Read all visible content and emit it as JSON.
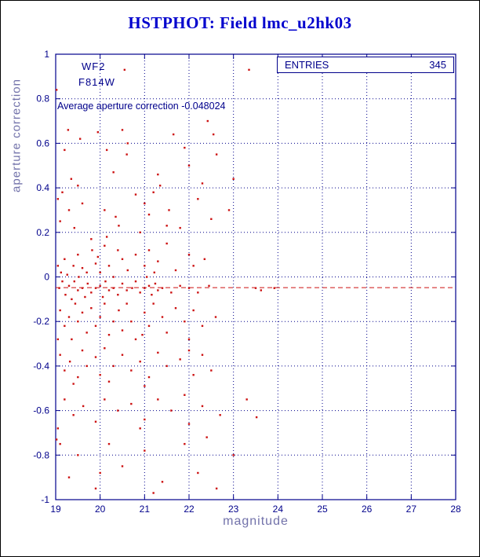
{
  "title": "HSTPHOT: Field lmc_u2hk03",
  "stats": {
    "entries_label": "ENTRIES",
    "entries_value": "345"
  },
  "annotations": {
    "camera": "WF2",
    "filter": "F814W",
    "average_text": "Average aperture correction -0.048024"
  },
  "colors": {
    "axis": "#00008b",
    "title": "#0000cd",
    "points": "#cc1111",
    "axis_label": "#7272aa"
  },
  "chart_data": {
    "type": "scatter",
    "title": "HSTPHOT: Field lmc_u2hk03",
    "xlabel": "magnitude",
    "ylabel": "aperture correction",
    "xlim": [
      19,
      28
    ],
    "ylim": [
      -1,
      1
    ],
    "xticks": [
      19,
      20,
      21,
      22,
      23,
      24,
      25,
      26,
      27,
      28
    ],
    "xtick_labels": [
      "19",
      "20",
      "21",
      "22",
      "23",
      "24",
      "25",
      "26",
      "27",
      "28"
    ],
    "yticks": [
      1,
      0.8,
      0.6,
      0.4,
      0.2,
      0,
      -0.2,
      -0.4,
      -0.6,
      -0.8,
      -1
    ],
    "ytick_labels": [
      "1",
      "0.8",
      "0.6",
      "0.4",
      "0.2",
      "0",
      "-0.2",
      "-0.4",
      "-0.6",
      "-0.8",
      "-1"
    ],
    "grid": true,
    "legend": false,
    "entries": 345,
    "average_aperture_correction": -0.048024,
    "reference_line_y": -0.048024,
    "points": [
      [
        20.55,
        0.93
      ],
      [
        23.35,
        0.93
      ],
      [
        19.02,
        0.84
      ],
      [
        19.28,
        0.66
      ],
      [
        19.95,
        0.65
      ],
      [
        20.5,
        0.66
      ],
      [
        20.62,
        0.6
      ],
      [
        21.65,
        0.64
      ],
      [
        22.42,
        0.7
      ],
      [
        22.55,
        0.64
      ],
      [
        19.55,
        0.62
      ],
      [
        20.15,
        0.57
      ],
      [
        20.6,
        0.55
      ],
      [
        22.62,
        0.55
      ],
      [
        19.2,
        0.57
      ],
      [
        21.9,
        0.58
      ],
      [
        19.35,
        0.44
      ],
      [
        19.5,
        0.41
      ],
      [
        20.3,
        0.47
      ],
      [
        21.3,
        0.46
      ],
      [
        21.35,
        0.41
      ],
      [
        22.3,
        0.42
      ],
      [
        19.15,
        0.38
      ],
      [
        20.8,
        0.37
      ],
      [
        21.2,
        0.38
      ],
      [
        22.0,
        0.5
      ],
      [
        19.05,
        0.35
      ],
      [
        23.0,
        0.44
      ],
      [
        19.1,
        0.25
      ],
      [
        19.3,
        0.3
      ],
      [
        19.42,
        0.22
      ],
      [
        19.6,
        0.33
      ],
      [
        20.1,
        0.3
      ],
      [
        20.35,
        0.27
      ],
      [
        20.42,
        0.23
      ],
      [
        21.0,
        0.33
      ],
      [
        21.1,
        0.28
      ],
      [
        21.5,
        0.23
      ],
      [
        21.55,
        0.3
      ],
      [
        22.2,
        0.35
      ],
      [
        22.5,
        0.26
      ],
      [
        20.15,
        0.18
      ],
      [
        20.9,
        0.2
      ],
      [
        19.8,
        0.17
      ],
      [
        21.8,
        0.22
      ],
      [
        22.9,
        0.3
      ],
      [
        19.05,
        0.05
      ],
      [
        19.12,
        0.02
      ],
      [
        19.2,
        0.08
      ],
      [
        19.26,
        0.01
      ],
      [
        19.4,
        0.05
      ],
      [
        19.5,
        0.1
      ],
      [
        19.52,
        0.0
      ],
      [
        19.6,
        0.04
      ],
      [
        19.7,
        0.02
      ],
      [
        19.82,
        0.12
      ],
      [
        19.9,
        0.06
      ],
      [
        20.0,
        0.02
      ],
      [
        20.1,
        0.14
      ],
      [
        20.2,
        0.05
      ],
      [
        20.3,
        0.0
      ],
      [
        20.5,
        0.08
      ],
      [
        20.62,
        0.03
      ],
      [
        20.8,
        0.1
      ],
      [
        21.0,
        0.05
      ],
      [
        21.05,
        0.0
      ],
      [
        21.1,
        0.12
      ],
      [
        21.22,
        0.02
      ],
      [
        21.3,
        0.07
      ],
      [
        21.5,
        0.15
      ],
      [
        22.0,
        0.1
      ],
      [
        22.1,
        0.05
      ],
      [
        20.4,
        0.12
      ],
      [
        19.95,
        0.09
      ],
      [
        21.7,
        0.03
      ],
      [
        22.35,
        0.08
      ],
      [
        19.08,
        -0.05
      ],
      [
        19.15,
        -0.02
      ],
      [
        19.22,
        -0.08
      ],
      [
        19.3,
        -0.04
      ],
      [
        19.36,
        -0.1
      ],
      [
        19.42,
        -0.02
      ],
      [
        19.5,
        -0.06
      ],
      [
        19.6,
        -0.05
      ],
      [
        19.66,
        -0.09
      ],
      [
        19.72,
        -0.03
      ],
      [
        19.8,
        -0.07
      ],
      [
        19.9,
        -0.05
      ],
      [
        20.0,
        -0.04
      ],
      [
        20.06,
        -0.09
      ],
      [
        20.12,
        -0.02
      ],
      [
        20.2,
        -0.06
      ],
      [
        20.3,
        -0.05
      ],
      [
        20.4,
        -0.08
      ],
      [
        20.5,
        -0.03
      ],
      [
        20.6,
        -0.06
      ],
      [
        20.72,
        -0.05
      ],
      [
        20.8,
        -0.02
      ],
      [
        20.9,
        -0.07
      ],
      [
        21.0,
        -0.05
      ],
      [
        21.1,
        -0.04
      ],
      [
        21.16,
        -0.08
      ],
      [
        21.24,
        -0.03
      ],
      [
        21.3,
        -0.06
      ],
      [
        21.4,
        -0.05
      ],
      [
        21.6,
        -0.07
      ],
      [
        21.8,
        -0.04
      ],
      [
        22.0,
        -0.05
      ],
      [
        22.2,
        -0.07
      ],
      [
        22.45,
        -0.04
      ],
      [
        23.5,
        -0.05
      ],
      [
        23.62,
        -0.06
      ],
      [
        23.92,
        -0.05
      ],
      [
        19.1,
        -0.15
      ],
      [
        19.2,
        -0.22
      ],
      [
        19.3,
        -0.18
      ],
      [
        19.36,
        -0.28
      ],
      [
        19.44,
        -0.12
      ],
      [
        19.5,
        -0.2
      ],
      [
        19.6,
        -0.16
      ],
      [
        19.7,
        -0.25
      ],
      [
        19.8,
        -0.14
      ],
      [
        19.9,
        -0.22
      ],
      [
        20.0,
        -0.18
      ],
      [
        20.1,
        -0.12
      ],
      [
        20.2,
        -0.26
      ],
      [
        20.3,
        -0.2
      ],
      [
        20.42,
        -0.15
      ],
      [
        20.5,
        -0.24
      ],
      [
        20.6,
        -0.12
      ],
      [
        20.7,
        -0.2
      ],
      [
        20.8,
        -0.28
      ],
      [
        21.0,
        -0.16
      ],
      [
        21.1,
        -0.22
      ],
      [
        21.2,
        -0.12
      ],
      [
        21.4,
        -0.18
      ],
      [
        21.5,
        -0.25
      ],
      [
        21.7,
        -0.14
      ],
      [
        21.9,
        -0.2
      ],
      [
        22.0,
        -0.28
      ],
      [
        22.1,
        -0.15
      ],
      [
        22.3,
        -0.22
      ],
      [
        19.05,
        -0.28
      ],
      [
        20.95,
        -0.26
      ],
      [
        22.6,
        -0.18
      ],
      [
        19.1,
        -0.35
      ],
      [
        19.2,
        -0.42
      ],
      [
        19.32,
        -0.38
      ],
      [
        19.5,
        -0.45
      ],
      [
        19.6,
        -0.33
      ],
      [
        19.7,
        -0.4
      ],
      [
        19.9,
        -0.36
      ],
      [
        20.0,
        -0.44
      ],
      [
        20.1,
        -0.32
      ],
      [
        20.3,
        -0.4
      ],
      [
        20.5,
        -0.35
      ],
      [
        20.7,
        -0.42
      ],
      [
        20.9,
        -0.38
      ],
      [
        21.1,
        -0.45
      ],
      [
        21.3,
        -0.34
      ],
      [
        21.5,
        -0.4
      ],
      [
        21.8,
        -0.37
      ],
      [
        22.1,
        -0.44
      ],
      [
        22.3,
        -0.35
      ],
      [
        22.5,
        -0.42
      ],
      [
        19.4,
        -0.48
      ],
      [
        20.2,
        -0.47
      ],
      [
        21.0,
        -0.49
      ],
      [
        22.0,
        -0.33
      ],
      [
        19.2,
        -0.55
      ],
      [
        19.4,
        -0.62
      ],
      [
        19.62,
        -0.58
      ],
      [
        19.9,
        -0.65
      ],
      [
        20.1,
        -0.55
      ],
      [
        20.4,
        -0.6
      ],
      [
        20.7,
        -0.57
      ],
      [
        21.0,
        -0.64
      ],
      [
        21.3,
        -0.55
      ],
      [
        21.6,
        -0.6
      ],
      [
        22.0,
        -0.66
      ],
      [
        22.3,
        -0.58
      ],
      [
        23.3,
        -0.55
      ],
      [
        23.52,
        -0.63
      ],
      [
        19.05,
        -0.68
      ],
      [
        20.9,
        -0.68
      ],
      [
        21.9,
        -0.53
      ],
      [
        22.7,
        -0.62
      ],
      [
        19.1,
        -0.75
      ],
      [
        19.3,
        -0.9
      ],
      [
        19.5,
        -0.8
      ],
      [
        19.9,
        -0.95
      ],
      [
        20.2,
        -0.75
      ],
      [
        20.5,
        -0.85
      ],
      [
        21.0,
        -0.78
      ],
      [
        21.4,
        -0.92
      ],
      [
        21.9,
        -0.75
      ],
      [
        22.2,
        -0.88
      ],
      [
        22.62,
        -0.95
      ],
      [
        23.0,
        -0.8
      ],
      [
        19.02,
        -0.73
      ],
      [
        20.0,
        -0.88
      ],
      [
        21.2,
        -0.97
      ],
      [
        22.4,
        -0.72
      ]
    ]
  }
}
